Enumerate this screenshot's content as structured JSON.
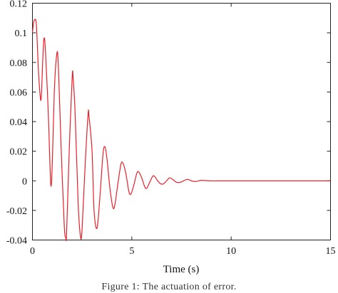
{
  "figure": {
    "caption": "Figure 1: The actuation of error."
  },
  "chart_data": {
    "type": "line",
    "title": "",
    "xlabel": "Time (s)",
    "ylabel": "",
    "xlim": [
      0,
      15
    ],
    "ylim": [
      -0.04,
      0.12
    ],
    "x_ticks": [
      "0",
      "5",
      "10",
      "15"
    ],
    "y_ticks": [
      "0.12",
      "0.1",
      "0.08",
      "0.06",
      "0.04",
      "0.02",
      "0",
      "-0.02",
      "-0.04"
    ],
    "grid": false,
    "series": [
      {
        "name": "",
        "color": "#e8202a",
        "points": [
          [
            0.0,
            0.1
          ],
          [
            0.05,
            0.106
          ],
          [
            0.12,
            0.109
          ],
          [
            0.2,
            0.105
          ],
          [
            0.3,
            0.075
          ],
          [
            0.4,
            0.056
          ],
          [
            0.45,
            0.058
          ],
          [
            0.52,
            0.082
          ],
          [
            0.58,
            0.096
          ],
          [
            0.65,
            0.089
          ],
          [
            0.8,
            0.045
          ],
          [
            0.92,
            -0.002
          ],
          [
            1.0,
            0.012
          ],
          [
            1.1,
            0.06
          ],
          [
            1.22,
            0.085
          ],
          [
            1.3,
            0.079
          ],
          [
            1.45,
            0.02
          ],
          [
            1.6,
            -0.03
          ],
          [
            1.67,
            -0.038
          ],
          [
            1.72,
            -0.035
          ],
          [
            1.85,
            0.02
          ],
          [
            2.0,
            0.07
          ],
          [
            2.05,
            0.069
          ],
          [
            2.15,
            0.045
          ],
          [
            2.3,
            -0.015
          ],
          [
            2.42,
            -0.038
          ],
          [
            2.5,
            -0.032
          ],
          [
            2.65,
            0.01
          ],
          [
            2.8,
            0.045
          ],
          [
            2.85,
            0.043
          ],
          [
            3.0,
            0.02
          ],
          [
            3.1,
            -0.02
          ],
          [
            3.25,
            -0.032
          ],
          [
            3.4,
            -0.01
          ],
          [
            3.55,
            0.018
          ],
          [
            3.65,
            0.023
          ],
          [
            3.75,
            0.015
          ],
          [
            3.9,
            -0.005
          ],
          [
            4.05,
            -0.018
          ],
          [
            4.15,
            -0.016
          ],
          [
            4.3,
            -0.002
          ],
          [
            4.45,
            0.011
          ],
          [
            4.55,
            0.012
          ],
          [
            4.7,
            0.005
          ],
          [
            4.85,
            -0.007
          ],
          [
            4.95,
            -0.009
          ],
          [
            5.1,
            -0.003
          ],
          [
            5.25,
            0.005
          ],
          [
            5.35,
            0.006
          ],
          [
            5.5,
            0.002
          ],
          [
            5.65,
            -0.004
          ],
          [
            5.75,
            -0.005
          ],
          [
            5.9,
            -0.001
          ],
          [
            6.05,
            0.003
          ],
          [
            6.15,
            0.003
          ],
          [
            6.3,
            0.0
          ],
          [
            6.45,
            -0.002
          ],
          [
            6.6,
            -0.002
          ],
          [
            6.75,
            0.0
          ],
          [
            6.9,
            0.002
          ],
          [
            7.05,
            0.001
          ],
          [
            7.25,
            -0.001
          ],
          [
            7.45,
            -0.001
          ],
          [
            7.6,
            0.0
          ],
          [
            7.8,
            0.001
          ],
          [
            8.0,
            0.0
          ],
          [
            8.2,
            -0.0005
          ],
          [
            8.5,
            0.0003
          ],
          [
            8.9,
            0.0
          ],
          [
            9.5,
            0.0
          ],
          [
            10.0,
            0.0
          ],
          [
            15.0,
            0.0
          ]
        ]
      }
    ]
  }
}
